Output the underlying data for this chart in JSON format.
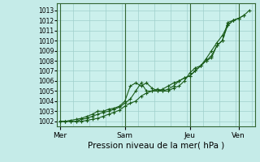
{
  "xlabel": "Pression niveau de la mer( hPa )",
  "bg_color": "#c5ebe8",
  "plot_bg_color": "#cbf0ec",
  "grid_color": "#9fcfcc",
  "line_color": "#1a5c1a",
  "ylim": [
    1001.5,
    1013.7
  ],
  "yticks": [
    1002,
    1003,
    1004,
    1005,
    1006,
    1007,
    1008,
    1009,
    1010,
    1011,
    1012,
    1013
  ],
  "xtick_labels": [
    "Mer",
    "Sam",
    "Jeu",
    "Ven"
  ],
  "xtick_positions": [
    0,
    24,
    48,
    66
  ],
  "xlim": [
    -1,
    72
  ],
  "vline_positions": [
    0,
    24,
    48,
    66
  ],
  "line1_x": [
    0,
    2,
    4,
    6,
    8,
    10,
    12,
    14,
    16,
    18,
    20,
    22,
    24,
    26,
    28,
    30,
    32,
    34,
    36,
    38,
    40,
    42,
    44,
    46,
    48,
    50,
    52,
    54,
    56,
    58,
    60,
    62,
    64,
    66,
    68,
    70
  ],
  "line1_y": [
    1002.0,
    1002.0,
    1002.1,
    1002.2,
    1002.3,
    1002.5,
    1002.7,
    1003.0,
    1003.0,
    1003.2,
    1003.3,
    1003.5,
    1004.0,
    1005.5,
    1005.8,
    1005.5,
    1005.8,
    1005.3,
    1005.0,
    1005.0,
    1005.2,
    1005.5,
    1006.0,
    1006.3,
    1006.5,
    1007.0,
    1007.5,
    1008.0,
    1008.3,
    1009.5,
    1010.0,
    1011.8,
    1012.0,
    1012.2,
    1012.5,
    1013.0
  ],
  "line2_x": [
    0,
    2,
    4,
    6,
    8,
    10,
    12,
    14,
    16,
    18,
    20,
    22,
    24,
    26,
    28,
    30,
    32,
    34,
    36,
    38,
    40,
    42,
    44,
    46,
    48,
    50,
    52,
    54,
    56,
    58,
    60,
    62,
    64,
    66,
    68
  ],
  "line2_y": [
    1002.0,
    1002.0,
    1002.0,
    1002.0,
    1002.2,
    1002.3,
    1002.5,
    1002.7,
    1002.9,
    1003.0,
    1003.2,
    1003.4,
    1003.8,
    1004.2,
    1005.0,
    1005.8,
    1005.0,
    1005.0,
    1005.2,
    1005.0,
    1005.0,
    1005.3,
    1005.5,
    1006.0,
    1006.8,
    1007.3,
    1007.5,
    1008.0,
    1008.5,
    1009.5,
    1010.0,
    1011.5,
    1012.0,
    1012.2,
    1012.5
  ],
  "line3_x": [
    0,
    2,
    4,
    6,
    8,
    10,
    12,
    14,
    16,
    18,
    20,
    22,
    24,
    26,
    28,
    30,
    32,
    34,
    36,
    38,
    40,
    42,
    44,
    46,
    48,
    50,
    52,
    54,
    56,
    58,
    60,
    62,
    64,
    66
  ],
  "line3_y": [
    1002.0,
    1002.0,
    1002.0,
    1002.0,
    1002.0,
    1002.1,
    1002.2,
    1002.3,
    1002.5,
    1002.7,
    1002.9,
    1003.1,
    1003.5,
    1003.8,
    1004.0,
    1004.5,
    1004.8,
    1005.0,
    1005.0,
    1005.2,
    1005.5,
    1005.8,
    1006.0,
    1006.3,
    1006.5,
    1007.0,
    1007.5,
    1008.2,
    1009.0,
    1009.8,
    1010.5,
    1011.5,
    1012.0,
    1012.2
  ],
  "marker_style": "+"
}
